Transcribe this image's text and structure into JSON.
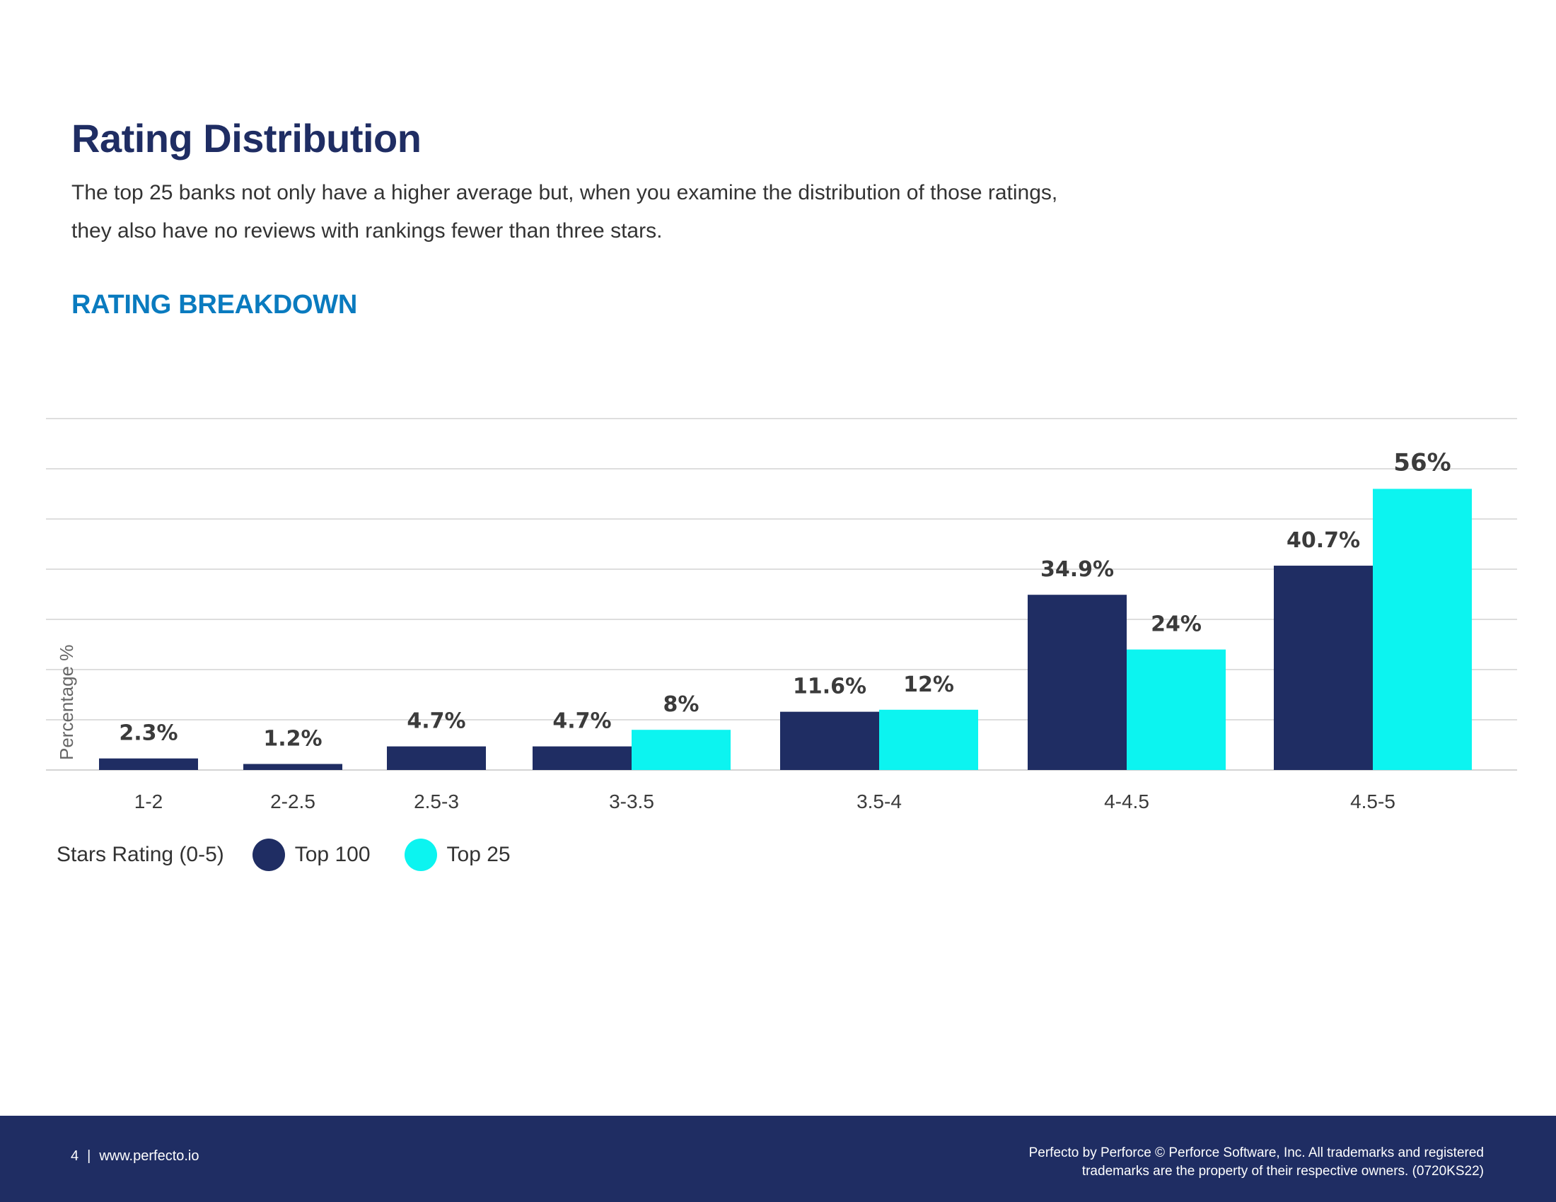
{
  "page": {
    "title": "Rating Distribution",
    "intro_line1": "The top 25 banks not only have a higher average but, when you examine the distribution of those ratings,",
    "intro_line2": "they also have no reviews with rankings fewer than three stars.",
    "chart_heading": "RATING BREAKDOWN"
  },
  "chart_data": {
    "type": "bar",
    "title": "RATING BREAKDOWN",
    "xlabel": "Stars Rating (0-5)",
    "ylabel": "Percentage %",
    "categories": [
      "1-2",
      "2-2.5",
      "2.5-3",
      "3-3.5",
      "3.5-4",
      "4-4.5",
      "4.5-5"
    ],
    "series": [
      {
        "name": "Top 100",
        "color": "#1f2d63",
        "values": [
          2.3,
          1.2,
          4.7,
          4.7,
          11.6,
          34.9,
          40.7
        ],
        "labels": [
          "2.3%",
          "1.2%",
          "4.7%",
          "4.7%",
          "11.6%",
          "34.9%",
          "40.7%"
        ]
      },
      {
        "name": "Top 25",
        "color": "#0cf4f0",
        "values": [
          null,
          null,
          null,
          8,
          12,
          24,
          56
        ],
        "labels": [
          "",
          "",
          "",
          "8%",
          "12%",
          "24%",
          "56%"
        ]
      }
    ],
    "ylim": [
      0,
      70
    ],
    "grid": true,
    "legend_position": "bottom-left"
  },
  "legend": {
    "title": "Stars Rating (0-5)",
    "items": [
      {
        "label": "Top 100",
        "color": "#1f2d63"
      },
      {
        "label": "Top 25",
        "color": "#0cf4f0"
      }
    ]
  },
  "footer": {
    "page_number": "4",
    "separator": "|",
    "website": "www.perfecto.io",
    "copyright_line1": "Perfecto by Perforce © Perforce Software, Inc. All trademarks and registered",
    "copyright_line2": "trademarks are the property of their respective owners. (0720KS22)"
  }
}
